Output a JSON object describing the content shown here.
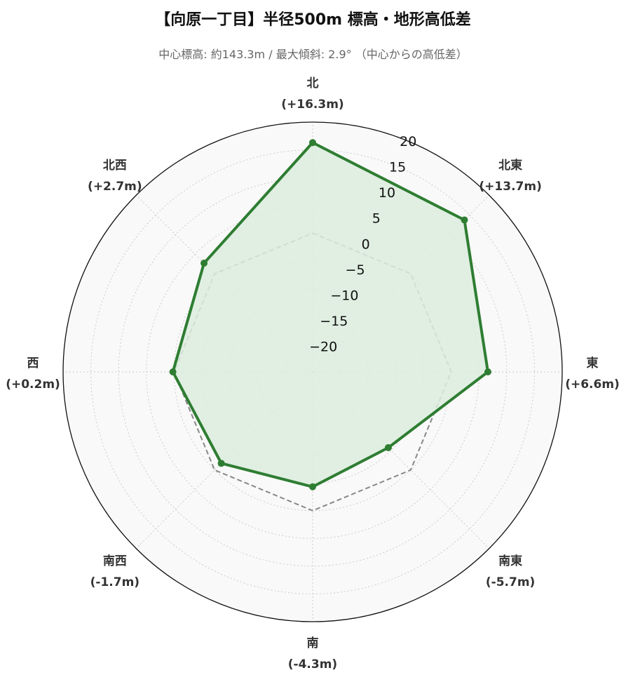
{
  "title": "【向原一丁目】半径500m 標高・地形高低差",
  "subtitle": "中心標高: 約143.3m / 最大傾斜: 2.9° （中心からの高低差）",
  "chart_data": {
    "type": "radar",
    "axes": [
      {
        "name": "北",
        "label": "(+16.3m)"
      },
      {
        "name": "北東",
        "label": "(+13.7m)"
      },
      {
        "name": "東",
        "label": "(+6.6m)"
      },
      {
        "name": "南東",
        "label": "(-5.7m)"
      },
      {
        "name": "南",
        "label": "(-4.3m)"
      },
      {
        "name": "南西",
        "label": "(-1.7m)"
      },
      {
        "name": "西",
        "label": "(+0.2m)"
      },
      {
        "name": "北西",
        "label": "(+2.7m)"
      }
    ],
    "series": [
      {
        "values": [
          16.3,
          13.7,
          6.6,
          -5.7,
          -4.3,
          -1.7,
          0.2,
          2.7
        ],
        "color": "#2e7d32",
        "fill": "#dcedde",
        "style": "solid"
      },
      {
        "values": [
          0,
          0,
          0,
          0,
          0,
          0,
          0,
          0
        ],
        "color": "#888888",
        "style": "dashed"
      }
    ],
    "rlim": [
      -25,
      20
    ],
    "ticks": [
      -20,
      -15,
      -10,
      -5,
      0,
      5,
      10,
      15,
      20
    ],
    "tick_labels": [
      "−20",
      "−15",
      "−10",
      "−5",
      "0",
      "5",
      "10",
      "15",
      "20"
    ],
    "grid": true,
    "background": "#f9f9f9",
    "grid_color": "#cccccc"
  }
}
